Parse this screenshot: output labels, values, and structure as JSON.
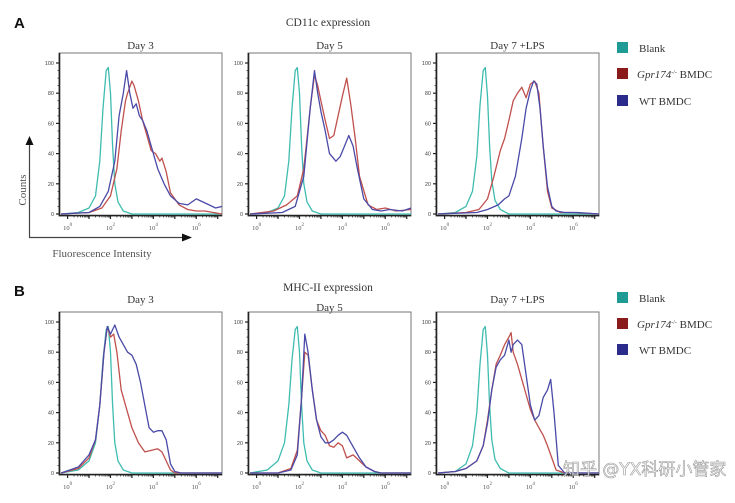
{
  "figure": {
    "panels": [
      {
        "letter": "A",
        "section_title": "CD11c expression"
      },
      {
        "letter": "B",
        "section_title": "MHC-II expression"
      }
    ],
    "axis_labels": {
      "y": "Counts",
      "x": "Fluorescence Intensity"
    },
    "legend": [
      {
        "label": "Blank",
        "color": "#1f9b95"
      },
      {
        "label_italic": "Gpr174",
        "label_sup": "-/-",
        "label_rest": " BMDC",
        "color": "#8b1a1a"
      },
      {
        "label": "WT BMDC",
        "color": "#2b2b8c"
      }
    ],
    "watermark": "知乎 @YX科研小管家"
  },
  "chart_data": [
    {
      "type": "line",
      "group": "A",
      "title": "Day 3",
      "xlabel": "Fluorescence Intensity",
      "ylabel": "Counts",
      "xscale": "log10",
      "xlim": [
        -0.4,
        7.2
      ],
      "ylim": [
        0,
        105
      ],
      "xticks": [
        0,
        2,
        4,
        6
      ],
      "xtick_labels": [
        "10^0",
        "10^2",
        "10^4",
        "10^6"
      ],
      "yticks": [
        0,
        20,
        40,
        60,
        80,
        100
      ],
      "ytick_labels": [
        "0",
        "20",
        "40",
        "60",
        "80",
        "100"
      ],
      "grid": false,
      "series": [
        {
          "name": "Blank",
          "color": "#3fbcb0",
          "x": [
            -0.3,
            0.5,
            1.0,
            1.3,
            1.5,
            1.65,
            1.8,
            1.9,
            2.0,
            2.1,
            2.2,
            2.35,
            2.6,
            3.0,
            4.0,
            7.2
          ],
          "y": [
            0,
            1,
            4,
            12,
            35,
            70,
            95,
            97,
            80,
            45,
            20,
            8,
            2,
            0,
            0,
            0
          ]
        },
        {
          "name": "Gpr174-/- BMDC",
          "color": "#c0504d",
          "x": [
            -0.3,
            1.0,
            1.6,
            2.0,
            2.3,
            2.5,
            2.7,
            2.8,
            3.0,
            3.1,
            3.3,
            3.5,
            3.7,
            3.9,
            4.1,
            4.3,
            4.4,
            4.6,
            4.8,
            5.2,
            5.6,
            6.0,
            6.4,
            7.2
          ],
          "y": [
            0,
            1,
            4,
            12,
            30,
            55,
            75,
            80,
            88,
            85,
            75,
            62,
            52,
            42,
            40,
            35,
            37,
            28,
            14,
            6,
            3,
            2,
            2,
            0
          ]
        },
        {
          "name": "WT BMDC",
          "color": "#4a4aa8",
          "x": [
            -0.3,
            1.0,
            1.5,
            1.9,
            2.2,
            2.4,
            2.6,
            2.75,
            2.9,
            3.05,
            3.2,
            3.35,
            3.5,
            3.7,
            3.9,
            4.2,
            4.5,
            4.8,
            5.2,
            5.6,
            6.0,
            6.3,
            6.6,
            6.9,
            7.2
          ],
          "y": [
            0,
            1,
            5,
            15,
            35,
            65,
            80,
            95,
            80,
            70,
            73,
            65,
            62,
            55,
            45,
            30,
            20,
            12,
            7,
            6,
            10,
            8,
            6,
            4,
            5
          ]
        }
      ]
    },
    {
      "type": "line",
      "group": "A",
      "title": "Day 5",
      "xscale": "log10",
      "xlim": [
        -0.4,
        7.2
      ],
      "ylim": [
        0,
        105
      ],
      "xticks": [
        0,
        2,
        4,
        6
      ],
      "xtick_labels": [
        "10^0",
        "10^2",
        "10^4",
        "10^6"
      ],
      "yticks": [
        0,
        20,
        40,
        60,
        80,
        100
      ],
      "ytick_labels": [
        "0",
        "20",
        "40",
        "60",
        "80",
        "100"
      ],
      "series": [
        {
          "name": "Blank",
          "color": "#3fbcb0",
          "x": [
            -0.3,
            0.5,
            1.0,
            1.3,
            1.5,
            1.65,
            1.8,
            1.9,
            2.0,
            2.1,
            2.2,
            2.35,
            2.6,
            3.0,
            7.2
          ],
          "y": [
            0,
            1,
            4,
            12,
            35,
            70,
            95,
            97,
            80,
            45,
            20,
            8,
            2,
            0,
            0
          ]
        },
        {
          "name": "Gpr174-/- BMDC",
          "color": "#c0504d",
          "x": [
            -0.3,
            0.8,
            1.4,
            1.9,
            2.2,
            2.5,
            2.7,
            2.85,
            3.0,
            3.2,
            3.4,
            3.6,
            3.8,
            4.0,
            4.2,
            4.4,
            4.6,
            4.8,
            5.2,
            5.6,
            6.0,
            6.5,
            7.2
          ],
          "y": [
            0,
            2,
            6,
            12,
            30,
            70,
            92,
            85,
            75,
            62,
            50,
            52,
            65,
            78,
            90,
            72,
            50,
            25,
            6,
            3,
            4,
            2,
            3
          ]
        },
        {
          "name": "WT BMDC",
          "color": "#4a4aa8",
          "x": [
            -0.3,
            1.2,
            1.8,
            2.2,
            2.5,
            2.7,
            2.85,
            3.0,
            3.2,
            3.4,
            3.7,
            3.9,
            4.1,
            4.3,
            4.5,
            4.7,
            5.0,
            5.4,
            5.8,
            6.2,
            6.8,
            7.2
          ],
          "y": [
            0,
            1,
            5,
            25,
            70,
            95,
            80,
            68,
            55,
            40,
            35,
            38,
            45,
            52,
            45,
            30,
            10,
            3,
            2,
            3,
            2,
            4
          ]
        }
      ]
    },
    {
      "type": "line",
      "group": "A",
      "title": "Day 7 +LPS",
      "xscale": "log10",
      "xlim": [
        -0.4,
        7.2
      ],
      "ylim": [
        0,
        105
      ],
      "xticks": [
        0,
        2,
        4,
        6
      ],
      "xtick_labels": [
        "10^0",
        "10^2",
        "10^4",
        "10^6"
      ],
      "yticks": [
        0,
        20,
        40,
        60,
        80,
        100
      ],
      "ytick_labels": [
        "0",
        "20",
        "40",
        "60",
        "80",
        "100"
      ],
      "series": [
        {
          "name": "Blank",
          "color": "#3fbcb0",
          "x": [
            -0.3,
            0.5,
            1.0,
            1.3,
            1.5,
            1.65,
            1.8,
            1.9,
            2.0,
            2.1,
            2.2,
            2.35,
            2.6,
            3.0,
            7.2
          ],
          "y": [
            0,
            1,
            5,
            15,
            38,
            72,
            95,
            97,
            78,
            45,
            22,
            9,
            3,
            0,
            0
          ]
        },
        {
          "name": "Gpr174-/- BMDC",
          "color": "#c0504d",
          "x": [
            -0.3,
            1.0,
            1.6,
            2.0,
            2.3,
            2.6,
            2.8,
            3.0,
            3.2,
            3.4,
            3.6,
            3.8,
            4.0,
            4.2,
            4.4,
            4.6,
            4.8,
            5.0,
            5.4,
            6.0,
            7.2
          ],
          "y": [
            0,
            1,
            3,
            10,
            25,
            42,
            50,
            62,
            75,
            80,
            84,
            77,
            86,
            88,
            80,
            45,
            15,
            4,
            1,
            1,
            0
          ]
        },
        {
          "name": "WT BMDC",
          "color": "#4a4aa8",
          "x": [
            -0.3,
            1.5,
            2.0,
            2.5,
            2.8,
            3.0,
            3.3,
            3.6,
            3.8,
            4.0,
            4.15,
            4.3,
            4.45,
            4.6,
            4.8,
            5.0,
            5.2,
            5.6,
            6.2,
            7.2
          ],
          "y": [
            0,
            1,
            3,
            6,
            10,
            12,
            25,
            50,
            70,
            82,
            88,
            86,
            70,
            45,
            18,
            5,
            2,
            1,
            1,
            0
          ]
        }
      ]
    },
    {
      "type": "line",
      "group": "B",
      "title": "Day 3",
      "xscale": "log10",
      "xlim": [
        -0.4,
        7.2
      ],
      "ylim": [
        0,
        105
      ],
      "xticks": [
        0,
        2,
        4,
        6
      ],
      "xtick_labels": [
        "10^0",
        "10^2",
        "10^4",
        "10^6"
      ],
      "yticks": [
        0,
        20,
        40,
        60,
        80,
        100
      ],
      "ytick_labels": [
        "0",
        "20",
        "40",
        "60",
        "80",
        "100"
      ],
      "series": [
        {
          "name": "Blank",
          "color": "#3fbcb0",
          "x": [
            -0.3,
            0.5,
            1.0,
            1.3,
            1.5,
            1.65,
            1.8,
            1.9,
            2.0,
            2.1,
            2.2,
            2.35,
            2.6,
            3.0,
            7.2
          ],
          "y": [
            0,
            2,
            8,
            20,
            45,
            75,
            95,
            97,
            80,
            45,
            20,
            8,
            2,
            0,
            0
          ]
        },
        {
          "name": "Gpr174-/- BMDC",
          "color": "#c0504d",
          "x": [
            -0.3,
            0.5,
            1.0,
            1.3,
            1.5,
            1.7,
            1.85,
            2.0,
            2.15,
            2.3,
            2.5,
            2.8,
            3.0,
            3.3,
            3.6,
            3.9,
            4.2,
            4.4,
            4.6,
            4.8,
            5.0,
            5.4,
            7.2
          ],
          "y": [
            0,
            3,
            10,
            22,
            45,
            80,
            97,
            90,
            92,
            80,
            55,
            40,
            30,
            20,
            14,
            15,
            16,
            14,
            8,
            2,
            0,
            0,
            0
          ]
        },
        {
          "name": "WT BMDC",
          "color": "#4a4aa8",
          "x": [
            -0.3,
            0.5,
            1.0,
            1.3,
            1.5,
            1.7,
            1.85,
            2.0,
            2.2,
            2.4,
            2.6,
            2.8,
            3.0,
            3.2,
            3.4,
            3.6,
            3.8,
            4.0,
            4.2,
            4.4,
            4.6,
            4.8,
            5.0,
            5.3,
            7.2
          ],
          "y": [
            0,
            4,
            12,
            22,
            45,
            80,
            97,
            92,
            98,
            90,
            85,
            80,
            78,
            72,
            60,
            45,
            30,
            27,
            28,
            28,
            22,
            6,
            1,
            0,
            0
          ]
        }
      ]
    },
    {
      "type": "line",
      "group": "B",
      "title": "Day 5",
      "xscale": "log10",
      "xlim": [
        -0.4,
        7.2
      ],
      "ylim": [
        0,
        105
      ],
      "xticks": [
        0,
        2,
        4,
        6
      ],
      "xtick_labels": [
        "10^0",
        "10^2",
        "10^4",
        "10^6"
      ],
      "yticks": [
        0,
        20,
        40,
        60,
        80,
        100
      ],
      "ytick_labels": [
        "0",
        "20",
        "40",
        "60",
        "80",
        "100"
      ],
      "series": [
        {
          "name": "Blank",
          "color": "#3fbcb0",
          "x": [
            -0.3,
            0.5,
            1.0,
            1.3,
            1.5,
            1.65,
            1.8,
            1.9,
            2.0,
            2.1,
            2.2,
            2.35,
            2.6,
            3.0,
            7.2
          ],
          "y": [
            0,
            2,
            8,
            20,
            45,
            75,
            95,
            97,
            80,
            45,
            20,
            8,
            2,
            0,
            0
          ]
        },
        {
          "name": "Gpr174-/- BMDC",
          "color": "#c0504d",
          "x": [
            -0.3,
            1.0,
            1.6,
            1.9,
            2.1,
            2.25,
            2.4,
            2.6,
            2.8,
            3.0,
            3.2,
            3.4,
            3.6,
            3.8,
            4.0,
            4.2,
            4.5,
            4.8,
            5.1,
            5.5,
            5.8,
            7.2
          ],
          "y": [
            0,
            0,
            3,
            15,
            50,
            80,
            78,
            55,
            35,
            28,
            25,
            18,
            17,
            20,
            18,
            10,
            12,
            8,
            4,
            1,
            0,
            0
          ]
        },
        {
          "name": "WT BMDC",
          "color": "#4a4aa8",
          "x": [
            -0.3,
            1.0,
            1.6,
            1.9,
            2.1,
            2.25,
            2.4,
            2.6,
            2.8,
            3.0,
            3.2,
            3.4,
            3.6,
            3.8,
            4.0,
            4.2,
            4.4,
            4.6,
            4.8,
            5.1,
            5.5,
            5.8,
            7.2
          ],
          "y": [
            0,
            0,
            2,
            12,
            50,
            92,
            80,
            55,
            35,
            24,
            20,
            20,
            22,
            25,
            27,
            25,
            20,
            15,
            10,
            4,
            1,
            0,
            0
          ]
        }
      ]
    },
    {
      "type": "line",
      "group": "B",
      "title": "Day 7 +LPS",
      "xscale": "log10",
      "xlim": [
        -0.4,
        7.2
      ],
      "ylim": [
        0,
        105
      ],
      "xticks": [
        0,
        2,
        4,
        6
      ],
      "xtick_labels": [
        "10^0",
        "10^2",
        "10^4",
        "10^6"
      ],
      "yticks": [
        0,
        20,
        40,
        60,
        80,
        100
      ],
      "ytick_labels": [
        "0",
        "20",
        "40",
        "60",
        "80",
        "100"
      ],
      "series": [
        {
          "name": "Blank",
          "color": "#3fbcb0",
          "x": [
            -0.3,
            0.5,
            1.0,
            1.3,
            1.5,
            1.65,
            1.8,
            1.9,
            2.0,
            2.1,
            2.2,
            2.35,
            2.6,
            3.0,
            7.2
          ],
          "y": [
            0,
            1,
            6,
            18,
            40,
            72,
            95,
            97,
            78,
            45,
            22,
            9,
            3,
            0,
            0
          ]
        },
        {
          "name": "Gpr174-/- BMDC",
          "color": "#c0504d",
          "x": [
            -0.3,
            0.5,
            1.0,
            1.5,
            1.8,
            2.0,
            2.2,
            2.4,
            2.6,
            2.8,
            3.0,
            3.1,
            3.2,
            3.4,
            3.6,
            3.8,
            4.0,
            4.2,
            4.4,
            4.6,
            4.8,
            5.0,
            5.2,
            5.6,
            7.2
          ],
          "y": [
            0,
            1,
            3,
            8,
            18,
            35,
            55,
            72,
            78,
            85,
            90,
            93,
            80,
            72,
            62,
            52,
            42,
            35,
            30,
            25,
            18,
            10,
            2,
            0,
            0
          ]
        },
        {
          "name": "WT BMDC",
          "color": "#4a4aa8",
          "x": [
            -0.3,
            0.5,
            1.0,
            1.5,
            1.8,
            2.0,
            2.2,
            2.4,
            2.6,
            2.8,
            3.0,
            3.1,
            3.2,
            3.4,
            3.6,
            3.8,
            4.0,
            4.2,
            4.4,
            4.6,
            4.8,
            4.95,
            5.1,
            5.3,
            5.6,
            7.2
          ],
          "y": [
            0,
            1,
            3,
            8,
            18,
            33,
            55,
            70,
            75,
            78,
            88,
            80,
            85,
            88,
            85,
            65,
            45,
            35,
            38,
            50,
            55,
            62,
            40,
            5,
            0,
            0
          ]
        }
      ]
    }
  ]
}
